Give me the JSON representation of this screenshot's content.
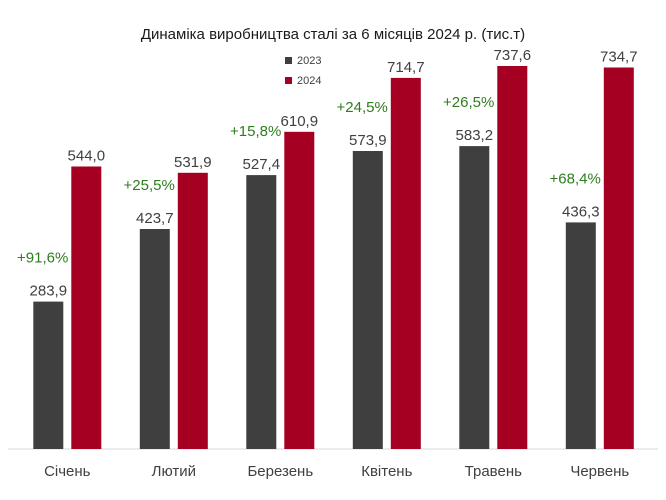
{
  "chart_data": {
    "type": "bar",
    "title": "Динаміка виробництва сталі за 6 місяців 2024 р. (тис.т)",
    "categories": [
      "Січень",
      "Лютий",
      "Березень",
      "Квітень",
      "Травень",
      "Червень"
    ],
    "series": [
      {
        "name": "2023",
        "color": "#3f3f3f",
        "values": [
          283.9,
          423.7,
          527.4,
          573.9,
          583.2,
          436.3
        ],
        "labels": [
          "283,9",
          "423,7",
          "527,4",
          "573,9",
          "583,2",
          "436,3"
        ]
      },
      {
        "name": "2024",
        "color": "#a50021",
        "values": [
          544.0,
          531.9,
          610.9,
          714.7,
          737.6,
          734.7
        ],
        "labels": [
          "544,0",
          "531,9",
          "610,9",
          "714,7",
          "737,6",
          "734,7"
        ]
      }
    ],
    "annotations": [
      "+91,6%",
      "+25,5%",
      "+15,8%",
      "+24,5%",
      "+26,5%",
      "+68,4%"
    ],
    "annotation_color": "#2e7d1e",
    "xlabel": "",
    "ylabel": "",
    "ylim": [
      0,
      820
    ],
    "grid": false,
    "legend_position": "top-center"
  }
}
